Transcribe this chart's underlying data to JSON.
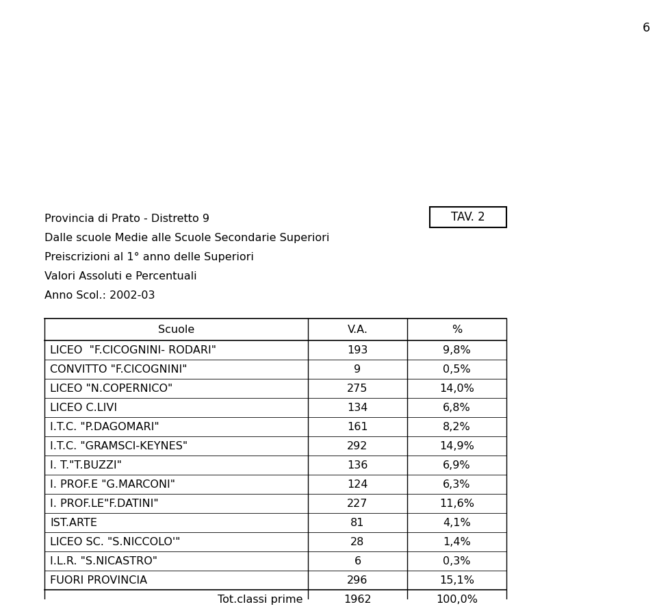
{
  "page_number": "6",
  "tav_label": "TAV. 2",
  "header_lines": [
    "Provincia di Prato - Distretto 9",
    "Dalle scuole Medie alle Scuole Secondarie Superiori",
    "Preiscrizioni al 1° anno delle Superiori",
    "Valori Assoluti e Percentuali",
    "Anno Scol.: 2002-03"
  ],
  "col_headers": [
    "Scuole",
    "V.A.",
    "%"
  ],
  "rows": [
    [
      "LICEO  \"F.CICOGNINI- RODARI\"",
      "193",
      "9,8%"
    ],
    [
      "CONVITTO \"F.CICOGNINI\"",
      "9",
      "0,5%"
    ],
    [
      "LICEO \"N.COPERNICO\"",
      "275",
      "14,0%"
    ],
    [
      "LICEO C.LIVI",
      "134",
      "6,8%"
    ],
    [
      "I.T.C. \"P.DAGOMARI\"",
      "161",
      "8,2%"
    ],
    [
      "I.T.C. \"GRAMSCI-KEYNES\"",
      "292",
      "14,9%"
    ],
    [
      "I. T.\"T.BUZZI\"",
      "136",
      "6,9%"
    ],
    [
      "I. PROF.E \"G.MARCONI\"",
      "124",
      "6,3%"
    ],
    [
      "I. PROF.LE\"F.DATINI\"",
      "227",
      "11,6%"
    ],
    [
      "IST.ARTE",
      "81",
      "4,1%"
    ],
    [
      "LICEO SC. \"S.NICCOLO'\"",
      "28",
      "1,4%"
    ],
    [
      "I.L.R. \"S.NICASTRO\"",
      "6",
      "0,3%"
    ],
    [
      "FUORI PROVINCIA",
      "296",
      "15,1%"
    ]
  ],
  "footer_row": [
    "Tot.classi prime",
    "1962",
    "100,0%"
  ],
  "background_color": "#ffffff",
  "text_color": "#000000",
  "font_size": 11.5,
  "tav_font_size": 12
}
